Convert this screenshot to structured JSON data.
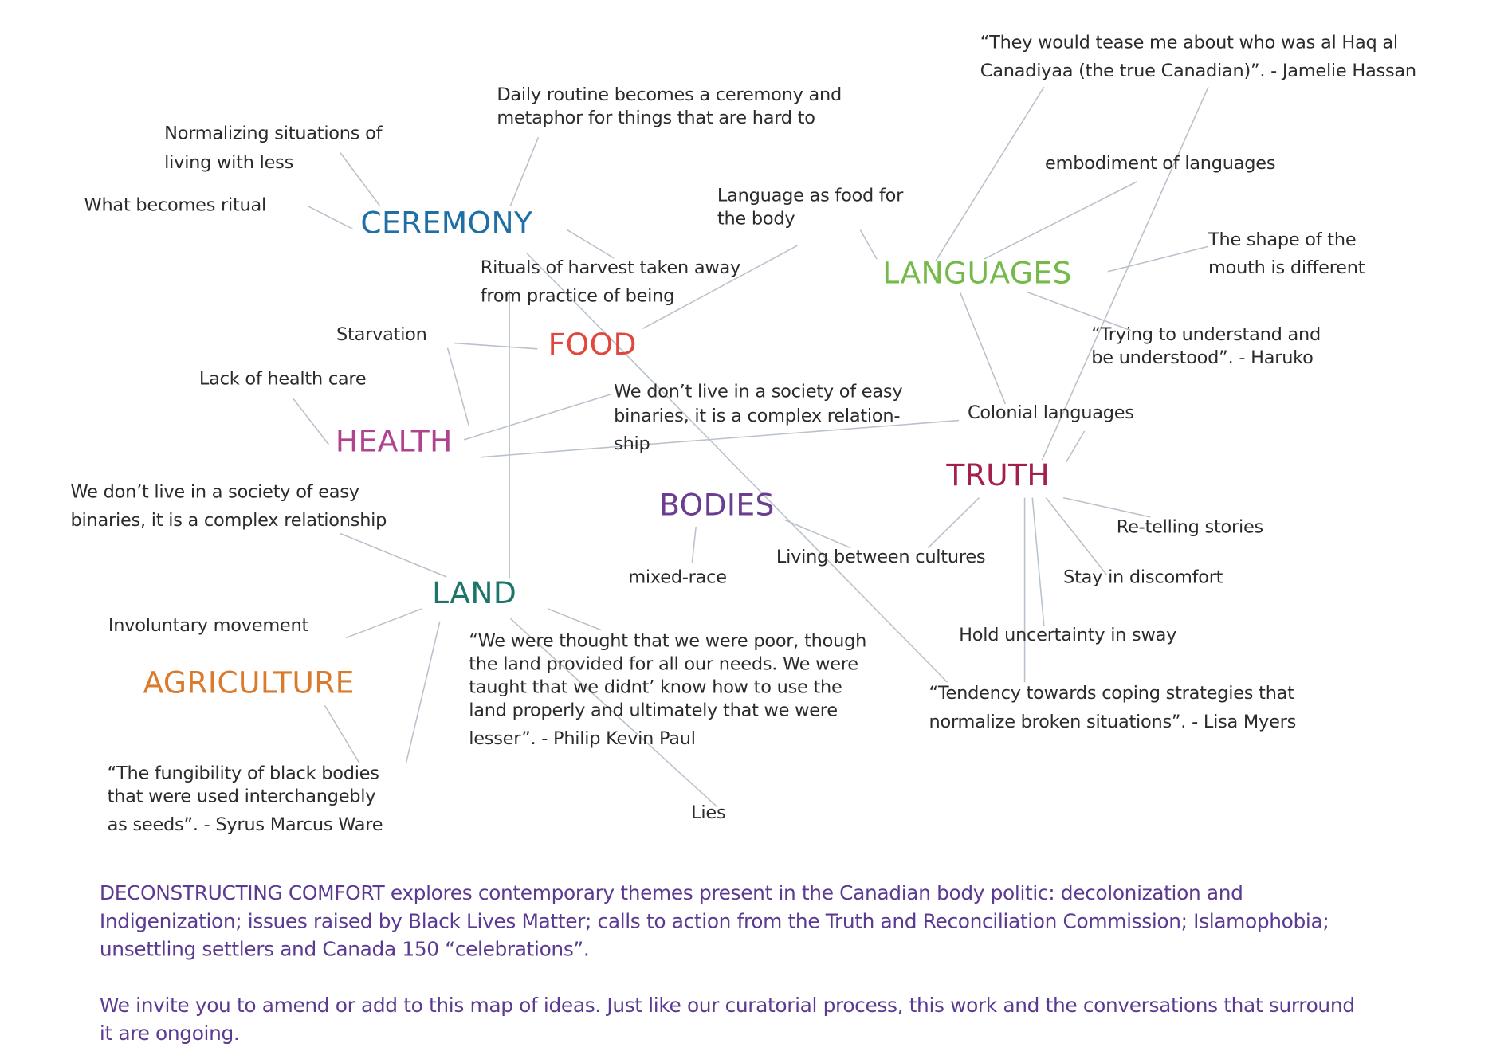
{
  "themes": {
    "ceremony": {
      "label": "CEREMONY",
      "color": "#1f6ea6"
    },
    "languages": {
      "label": "LANGUAGES",
      "color": "#74b94a"
    },
    "food": {
      "label": "FOOD",
      "color": "#e2473f"
    },
    "health": {
      "label": "HEALTH",
      "color": "#b0438f"
    },
    "truth": {
      "label": "TRUTH",
      "color": "#a3204e"
    },
    "bodies": {
      "label": "BODIES",
      "color": "#6a3d90"
    },
    "land": {
      "label": "LAND",
      "color": "#1e7468"
    },
    "agriculture": {
      "label": "AGRICULTURE",
      "color": "#d97a2d"
    }
  },
  "notes": {
    "jamelie_1": "“They would tease me about who was al Haq al",
    "jamelie_2": "Canadiyaa (the true Canadian)”. - Jamelie Hassan",
    "daily_1": "Daily routine becomes a ceremony and",
    "daily_2": "metaphor for things that are hard to",
    "normalizing_1": "Normalizing situations of",
    "normalizing_2": "living with less",
    "embodiment": "embodiment of languages",
    "what_ritual": "What becomes ritual",
    "lang_food_1": "Language as food for",
    "lang_food_2": "the body",
    "shape_1": "The shape of the",
    "shape_2": "mouth is different",
    "rituals_1": "Rituals of harvest taken away",
    "rituals_2": "from practice of being",
    "starvation": "Starvation",
    "trying_1": "“Trying to understand and",
    "trying_2": "be understood”. - Haruko",
    "lack_health": "Lack of health care",
    "binaries_mid_1": "We don’t live in a society of easy",
    "binaries_mid_2": "binaries, it is a complex relation-",
    "binaries_mid_3": "ship",
    "colonial": "Colonial languages",
    "binaries_left_1": "We don’t live in a society of easy",
    "binaries_left_2": "binaries, it is a complex relationship",
    "retelling": "Re-telling stories",
    "living_between": "Living between cultures",
    "mixed_race": "mixed-race",
    "discomfort": "Stay in discomfort",
    "involuntary": "Involuntary movement",
    "uncertainty": "Hold uncertainty in sway",
    "poor_1": "“We were thought that we were poor, though",
    "poor_2": "the land provided for all our needs. We were",
    "poor_3": "taught that we didnt’ know how to use the",
    "poor_4": "land properly and ultimately that we were",
    "poor_5": "lesser”.  - Philip Kevin Paul",
    "tendency_1": "“Tendency towards coping strategies that",
    "tendency_2": "normalize broken situations”. - Lisa Myers",
    "fungibility_1": "“The fungibility of black bodies",
    "fungibility_2": "that were used interchangebly",
    "fungibility_3": "as seeds”. - Syrus Marcus Ware",
    "lies": "Lies"
  },
  "description": {
    "paragraph_1_line_1": "DECONSTRUCTING COMFORT explores contemporary themes present in the Canadian body politic: decolonization and",
    "paragraph_1_line_2": "Indigenization; issues raised by Black Lives Matter; calls to action from the Truth and Reconciliation Commission; Islamophobia;",
    "paragraph_1_line_3": "unsettling settlers and Canada 150 “celebrations”.",
    "paragraph_2_line_1": "We invite you to amend or add to this map of ideas. Just like our curatorial process, this work and the conversations that surround",
    "paragraph_2_line_2": "it are ongoing.",
    "color": "#5b3a92"
  },
  "connector_color": "#b9c2cc"
}
